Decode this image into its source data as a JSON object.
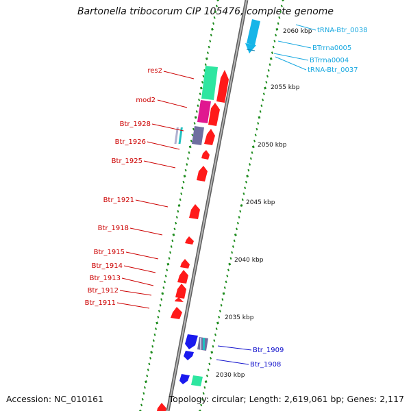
{
  "title": "Bartonella tribocorum CIP 105476, complete genome",
  "accession_text": "Accession: NC_010161",
  "summary_text": "Topology: circular; Length: 2,619,061 bp; Genes: 2,117",
  "colors": {
    "backbone": "#8f8f8f",
    "ticks": "#1e8c1e",
    "cds_red": "#ff1a1a",
    "cds_blue": "#1a1aee",
    "trna": "#29a9e6",
    "rrna": "#16b5e8",
    "res": "#2ee6a0",
    "mod": "#e01890",
    "red_label": "#cc0000",
    "blue_label": "#1010cc",
    "cyan_label": "#18a8e0"
  },
  "ruler_labels": [
    "2060 kbp",
    "2055 kbp",
    "2050 kbp",
    "2045 kbp",
    "2040 kbp",
    "2035 kbp",
    "2030 kbp"
  ],
  "features": [
    {
      "id": "res2",
      "label": "res2",
      "color_key": "red_label"
    },
    {
      "id": "mod2",
      "label": "mod2",
      "color_key": "red_label"
    },
    {
      "id": "btr1928",
      "label": "Btr_1928",
      "color_key": "red_label"
    },
    {
      "id": "btr1926",
      "label": "Btr_1926",
      "color_key": "red_label"
    },
    {
      "id": "btr1925",
      "label": "Btr_1925",
      "color_key": "red_label"
    },
    {
      "id": "btr1921",
      "label": "Btr_1921",
      "color_key": "red_label"
    },
    {
      "id": "btr1918",
      "label": "Btr_1918",
      "color_key": "red_label"
    },
    {
      "id": "btr1915",
      "label": "Btr_1915",
      "color_key": "red_label"
    },
    {
      "id": "btr1914",
      "label": "Btr_1914",
      "color_key": "red_label"
    },
    {
      "id": "btr1913",
      "label": "Btr_1913",
      "color_key": "red_label"
    },
    {
      "id": "btr1912",
      "label": "Btr_1912",
      "color_key": "red_label"
    },
    {
      "id": "btr1911",
      "label": "Btr_1911",
      "color_key": "red_label"
    },
    {
      "id": "btr1909",
      "label": "Btr_1909",
      "color_key": "blue_label"
    },
    {
      "id": "btr1908",
      "label": "Btr_1908",
      "color_key": "blue_label"
    },
    {
      "id": "trna38",
      "label": "tRNA-Btr_0038",
      "color_key": "cyan_label"
    },
    {
      "id": "rrna5",
      "label": "BTrrna0005",
      "color_key": "cyan_label"
    },
    {
      "id": "rrna4",
      "label": "BTrrna0004",
      "color_key": "cyan_label"
    },
    {
      "id": "trna37",
      "label": "tRNA-Btr_0037",
      "color_key": "cyan_label"
    }
  ]
}
